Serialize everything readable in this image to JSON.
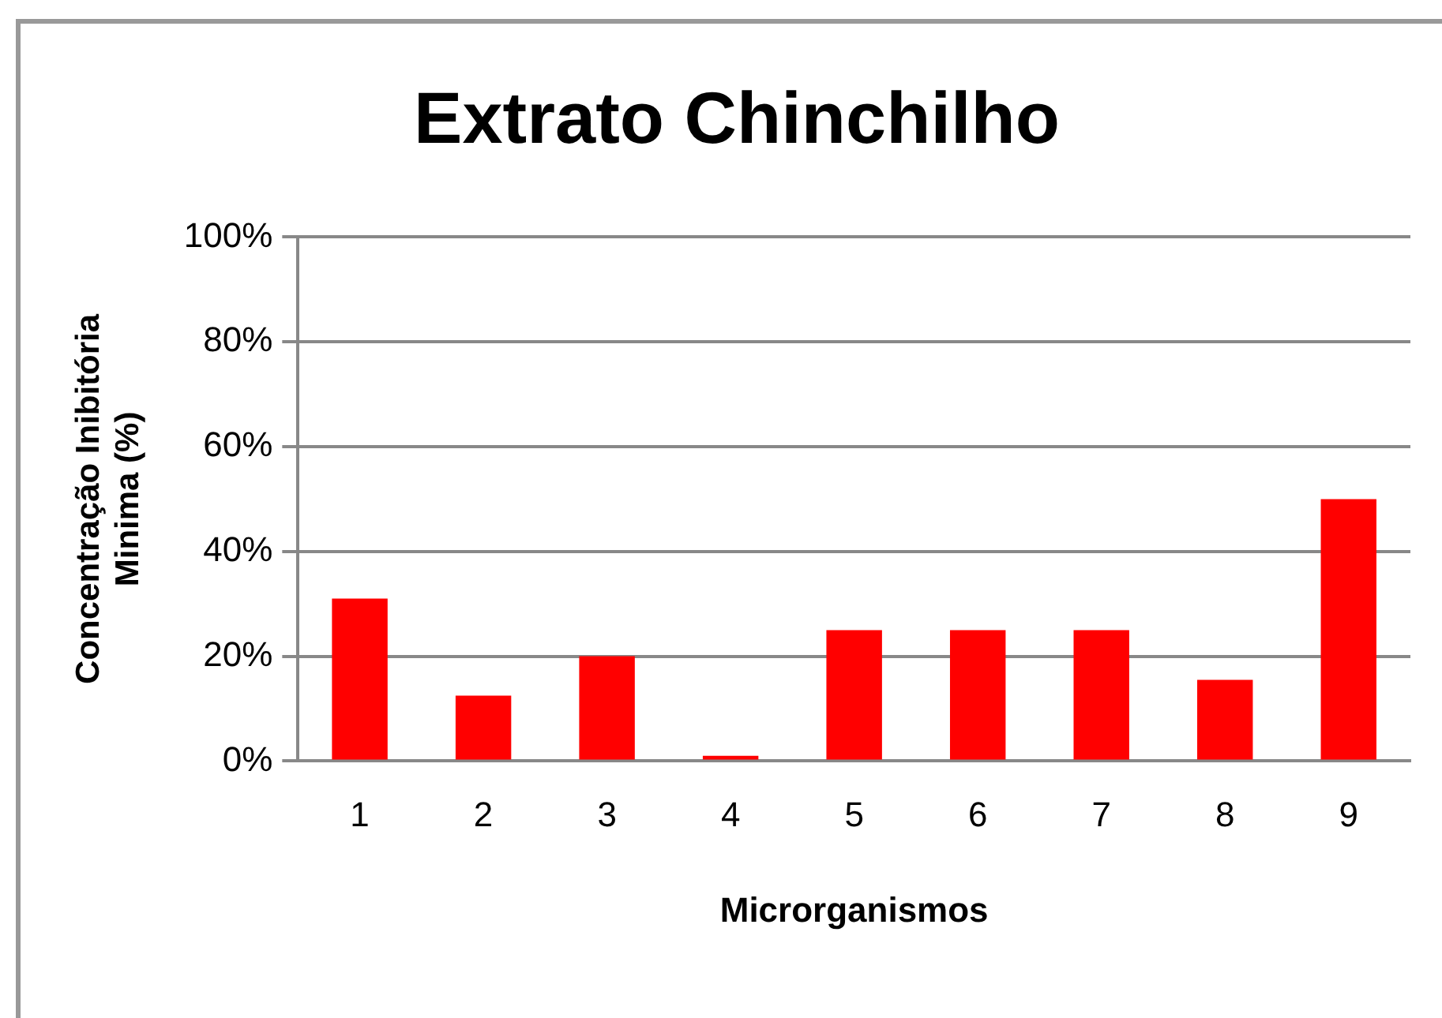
{
  "chart_data": {
    "type": "bar",
    "title": "Extrato Chinchilho",
    "xlabel": "Microrganismos",
    "ylabel": "Concentração Inibitória\nMinima (%)",
    "categories": [
      "1",
      "2",
      "3",
      "4",
      "5",
      "6",
      "7",
      "8",
      "9"
    ],
    "values": [
      31,
      12.5,
      20,
      1,
      25,
      25,
      25,
      15.5,
      50
    ],
    "color": "#ff0000",
    "ylim": [
      0,
      100
    ],
    "yticks": [
      {
        "value": 0,
        "label": "0%"
      },
      {
        "value": 20,
        "label": "20%"
      },
      {
        "value": 40,
        "label": "40%"
      },
      {
        "value": 60,
        "label": "60%"
      },
      {
        "value": 80,
        "label": "80%"
      },
      {
        "value": 100,
        "label": "100%"
      }
    ],
    "grid": "y",
    "legend": false
  }
}
